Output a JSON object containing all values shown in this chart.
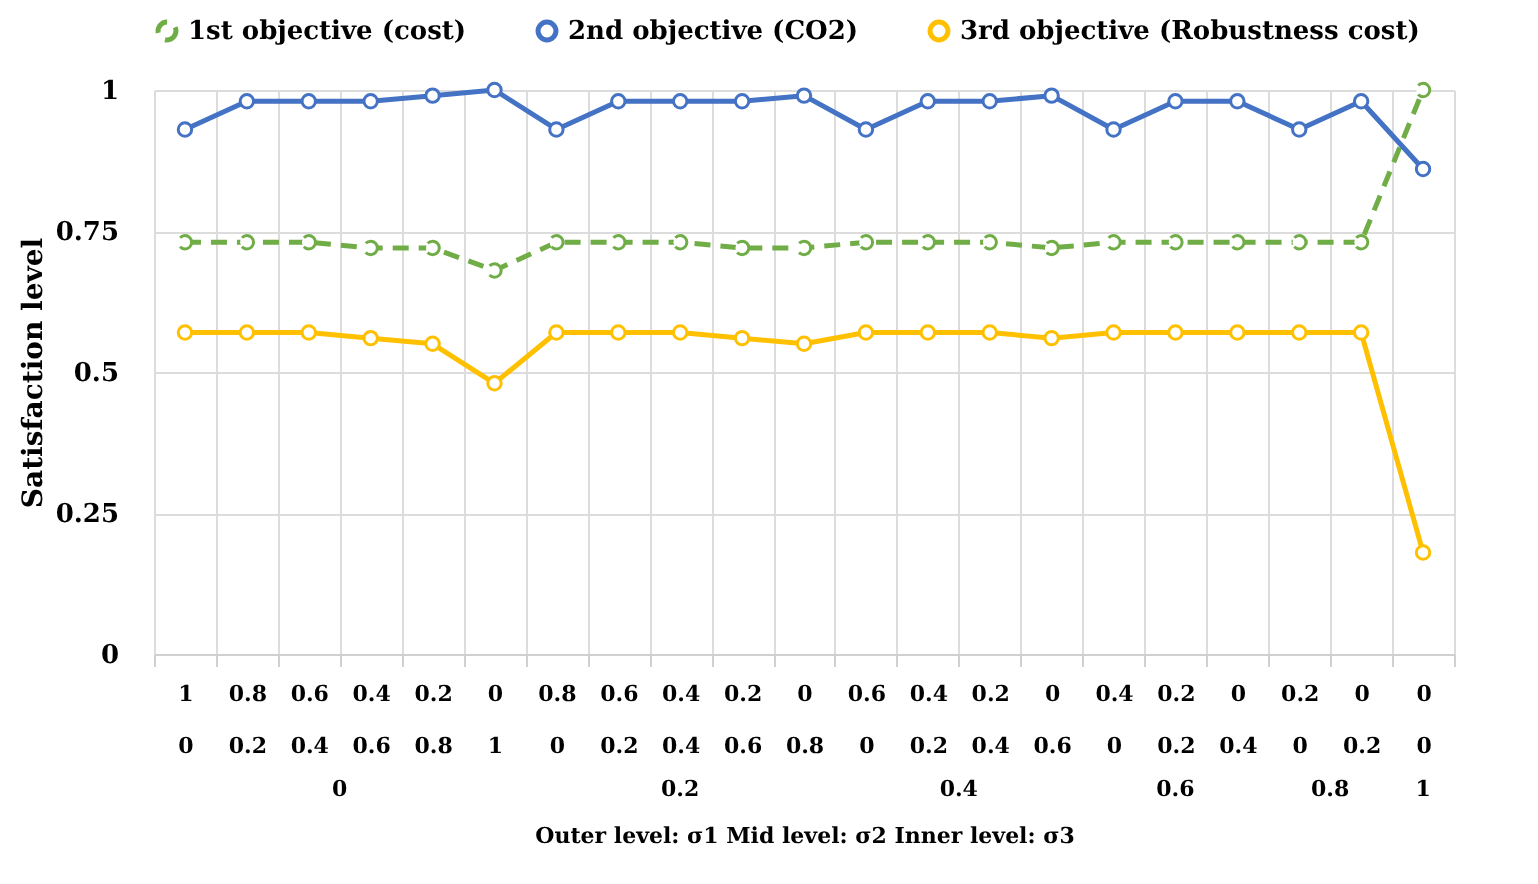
{
  "chart_data": {
    "type": "line",
    "ylabel": "Satisfaction level",
    "xlabel": "Outer level: σ1          Mid level: σ2          Inner level: σ3",
    "categories": [
      "1\n0",
      "0.8\n0.2",
      "0.6\n0.4",
      "0.4\n0.6",
      "0.2\n0.8",
      "0\n1",
      "0.8\n0",
      "0.6\n0.2",
      "0.4\n0.4",
      "0.2\n0.6",
      "0\n0.8",
      "0.6\n0",
      "0.4\n0.2",
      "0.2\n0.4",
      "0\n0.6",
      "0.4\n0",
      "0.2\n0.2",
      "0\n0.4",
      "0.2\n0",
      "0\n0.2",
      "0\n0"
    ],
    "series": [
      {
        "name": "1st objective (cost)",
        "color": "#70ad47",
        "line_style": "dashed",
        "values": [
          0.73,
          0.73,
          0.73,
          0.72,
          0.72,
          0.68,
          0.73,
          0.73,
          0.73,
          0.72,
          0.72,
          0.73,
          0.73,
          0.73,
          0.72,
          0.73,
          0.73,
          0.73,
          0.73,
          0.73,
          1.0
        ]
      },
      {
        "name": "2nd objective (CO2)",
        "color": "#4472c4",
        "line_style": "solid",
        "values": [
          0.93,
          0.98,
          0.98,
          0.98,
          0.99,
          1.0,
          0.93,
          0.98,
          0.98,
          0.98,
          0.99,
          0.93,
          0.98,
          0.98,
          0.99,
          0.93,
          0.98,
          0.98,
          0.93,
          0.98,
          0.86
        ]
      },
      {
        "name": "3rd objective (Robustness cost)",
        "color": "#ffc000",
        "line_style": "solid",
        "values": [
          0.57,
          0.57,
          0.57,
          0.56,
          0.55,
          0.48,
          0.57,
          0.57,
          0.57,
          0.56,
          0.55,
          0.57,
          0.57,
          0.57,
          0.56,
          0.57,
          0.57,
          0.57,
          0.57,
          0.57,
          0.18
        ]
      }
    ],
    "annotations": [
      "0",
      "0.2",
      "0.4",
      "0.6",
      "0.8",
      "1"
    ],
    "ylim": [
      0,
      1
    ],
    "yticks": [
      0,
      0.25,
      0.5,
      0.75,
      1
    ],
    "grid": true,
    "legend": "top",
    "marker": "circle"
  }
}
